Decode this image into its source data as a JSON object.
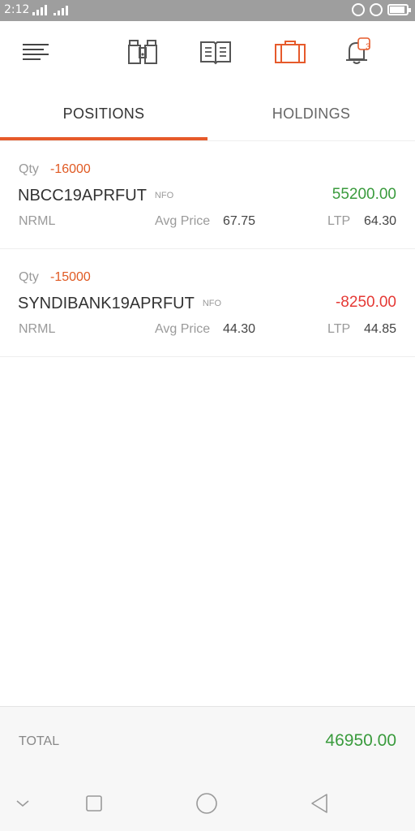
{
  "status_bar": {
    "time": "2:12",
    "network": "4G"
  },
  "toolbar": {
    "icons": [
      "menu-icon",
      "binoculars-icon",
      "book-icon",
      "briefcase-icon",
      "bell-icon"
    ],
    "notification_count": "3",
    "accent_color": "#e65a2b"
  },
  "tabs": [
    {
      "label": "POSITIONS",
      "active": true
    },
    {
      "label": "HOLDINGS",
      "active": false
    }
  ],
  "positions": [
    {
      "qty_label": "Qty",
      "qty": "-16000",
      "symbol": "NBCC19APRFUT",
      "exchange": "NFO",
      "pnl": "55200.00",
      "pnl_color": "#3a9b3d",
      "product": "NRML",
      "avg_label": "Avg Price",
      "avg_price": "67.75",
      "ltp_label": "LTP",
      "ltp": "64.30"
    },
    {
      "qty_label": "Qty",
      "qty": "-15000",
      "symbol": "SYNDIBANK19APRFUT",
      "exchange": "NFO",
      "pnl": "-8250.00",
      "pnl_color": "#e53935",
      "product": "NRML",
      "avg_label": "Avg Price",
      "avg_price": "44.30",
      "ltp_label": "LTP",
      "ltp": "44.85"
    }
  ],
  "total": {
    "label": "TOTAL",
    "value": "46950.00"
  },
  "nav_bar": {
    "icons": [
      "chevron-down-icon",
      "recents-square-icon",
      "home-circle-icon",
      "back-triangle-icon"
    ]
  }
}
